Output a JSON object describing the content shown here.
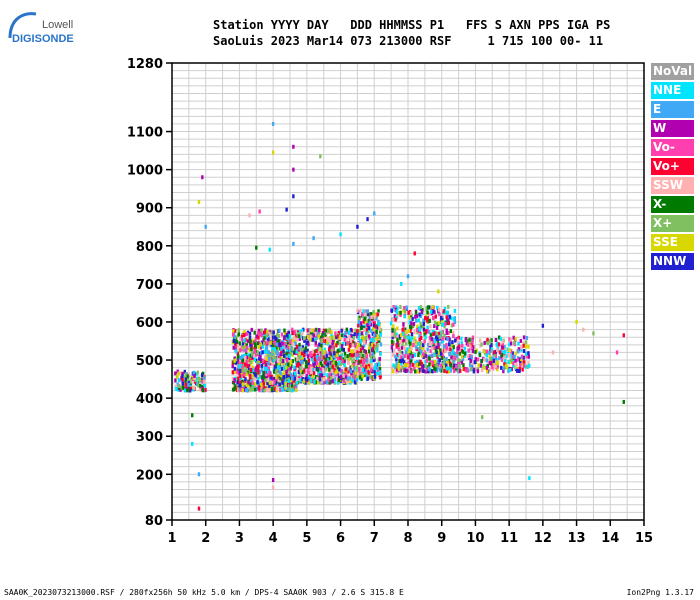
{
  "logo": {
    "line1": "Lowell",
    "line2": "DIGISONDE"
  },
  "header": {
    "line1": "Station YYYY DAY   DDD HHMMSS P1   FFS S AXN PPS IGA PS",
    "line2": "SaoLuis 2023 Mar14 073 213000 RSF     1 715 100 00- 11"
  },
  "legend": [
    {
      "label": "NoVal",
      "color": "#a0a0a0"
    },
    {
      "label": "NNE",
      "color": "#00e5ff"
    },
    {
      "label": "E",
      "color": "#3fa9f5"
    },
    {
      "label": "W",
      "color": "#b000b0"
    },
    {
      "label": "Vo-",
      "color": "#ff3fb0"
    },
    {
      "label": "Vo+",
      "color": "#ff0030"
    },
    {
      "label": "SSW",
      "color": "#ffb0b0"
    },
    {
      "label": "X-",
      "color": "#007a00"
    },
    {
      "label": "X+",
      "color": "#80c060"
    },
    {
      "label": "SSE",
      "color": "#d8d800"
    },
    {
      "label": "NNW",
      "color": "#2020d0"
    }
  ],
  "footer": {
    "left": "SAA0K_2023073213000.RSF / 280fx256h 50 kHz 5.0 km / DPS-4 SAA0K 903 / 2.6 S 315.8 E",
    "right": "Ion2Png 1.3.17"
  },
  "chart_data": {
    "type": "scatter",
    "xlim": [
      1,
      15
    ],
    "ylim": [
      80,
      1280
    ],
    "x_ticks": [
      "1",
      "2",
      "3",
      "4",
      "5",
      "6",
      "7",
      "8",
      "9",
      "10",
      "11",
      "12",
      "13",
      "14",
      "15"
    ],
    "y_ticks": [
      "80",
      "200",
      "300",
      "400",
      "500",
      "600",
      "700",
      "800",
      "900",
      "1000",
      "1100",
      "1280"
    ],
    "y_tick_values": [
      80,
      200,
      300,
      400,
      500,
      600,
      700,
      800,
      900,
      1000,
      1100,
      1280
    ],
    "grid": true,
    "legend_position": "right",
    "clusters": [
      {
        "x": [
          1.1,
          2.0
        ],
        "y": [
          420,
          470
        ],
        "n": 120
      },
      {
        "x": [
          2.8,
          4.7
        ],
        "y": [
          420,
          580
        ],
        "n": 900
      },
      {
        "x": [
          4.7,
          6.5
        ],
        "y": [
          440,
          580
        ],
        "n": 700
      },
      {
        "x": [
          6.5,
          7.2
        ],
        "y": [
          450,
          630
        ],
        "n": 300
      },
      {
        "x": [
          7.5,
          9.4
        ],
        "y": [
          470,
          640
        ],
        "n": 600
      },
      {
        "x": [
          9.4,
          11.6
        ],
        "y": [
          470,
          560
        ],
        "n": 300
      }
    ],
    "points": [
      {
        "x": 4.0,
        "y": 1120
      },
      {
        "x": 4.6,
        "y": 1060
      },
      {
        "x": 4.0,
        "y": 1045
      },
      {
        "x": 5.4,
        "y": 1035
      },
      {
        "x": 1.9,
        "y": 980
      },
      {
        "x": 4.6,
        "y": 1000
      },
      {
        "x": 4.6,
        "y": 930
      },
      {
        "x": 1.8,
        "y": 915
      },
      {
        "x": 2.0,
        "y": 850
      },
      {
        "x": 3.3,
        "y": 880
      },
      {
        "x": 3.6,
        "y": 890
      },
      {
        "x": 4.4,
        "y": 895
      },
      {
        "x": 3.5,
        "y": 795
      },
      {
        "x": 3.9,
        "y": 790
      },
      {
        "x": 4.6,
        "y": 805
      },
      {
        "x": 5.2,
        "y": 820
      },
      {
        "x": 6.0,
        "y": 830
      },
      {
        "x": 6.5,
        "y": 850
      },
      {
        "x": 6.8,
        "y": 870
      },
      {
        "x": 7.0,
        "y": 885
      },
      {
        "x": 8.2,
        "y": 780
      },
      {
        "x": 7.8,
        "y": 700
      },
      {
        "x": 8.0,
        "y": 720
      },
      {
        "x": 8.9,
        "y": 680
      },
      {
        "x": 1.6,
        "y": 355
      },
      {
        "x": 1.6,
        "y": 280
      },
      {
        "x": 1.8,
        "y": 200
      },
      {
        "x": 1.8,
        "y": 110
      },
      {
        "x": 4.0,
        "y": 165
      },
      {
        "x": 4.0,
        "y": 185
      },
      {
        "x": 10.2,
        "y": 350
      },
      {
        "x": 11.6,
        "y": 190
      },
      {
        "x": 12.0,
        "y": 590
      },
      {
        "x": 12.3,
        "y": 520
      },
      {
        "x": 13.0,
        "y": 600
      },
      {
        "x": 13.2,
        "y": 580
      },
      {
        "x": 13.5,
        "y": 570
      },
      {
        "x": 14.2,
        "y": 520
      },
      {
        "x": 14.4,
        "y": 565
      },
      {
        "x": 14.4,
        "y": 390
      }
    ]
  }
}
